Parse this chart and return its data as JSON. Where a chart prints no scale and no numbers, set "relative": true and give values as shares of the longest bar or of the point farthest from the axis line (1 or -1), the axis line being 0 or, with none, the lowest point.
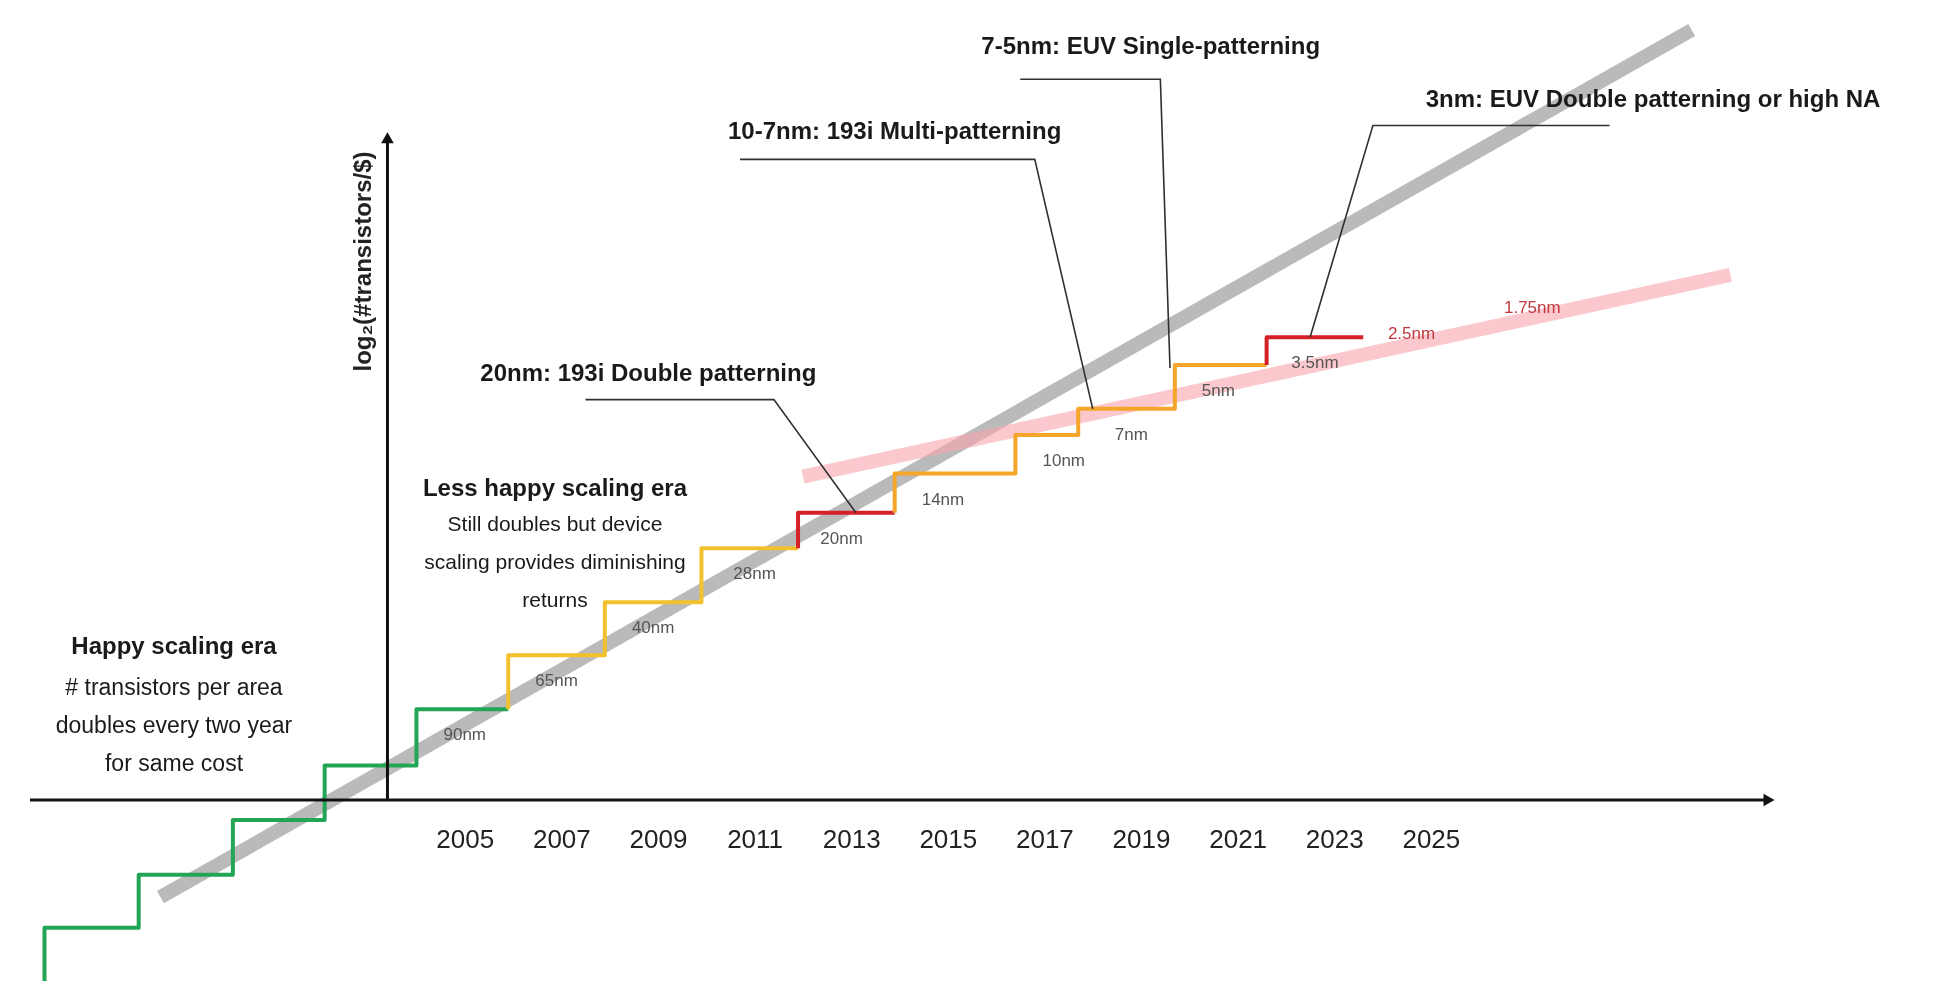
{
  "chart_data": {
    "type": "step",
    "relative": true,
    "ylabel": "log₂(#transistors/$)",
    "tick_labels": "x",
    "xlim": [
      1996,
      2032
    ],
    "xticks": [
      2005,
      2007,
      2009,
      2011,
      2013,
      2015,
      2017,
      2019,
      2021,
      2023,
      2025
    ],
    "series": [
      {
        "type": "line",
        "color": "#8c8c8c",
        "x": [
          1998.7,
          2030.4
        ],
        "values": [
          -0.126,
          1
        ]
      },
      {
        "type": "line",
        "color": "#f6a3ab",
        "x": [
          2012.0,
          2031.2
        ],
        "values": [
          0.42,
          0.682
        ]
      },
      {
        "color": "#22a555",
        "x": [
          1996.3,
          1996.3,
          1998.25,
          2000.2,
          2002.1,
          2004.0,
          2005.9
        ],
        "values": [
          -0.235,
          -0.166,
          -0.097,
          -0.026,
          0.045,
          0.118,
          0.118
        ]
      },
      {
        "color": "#f2c12e",
        "x": [
          2005.9,
          2005.9,
          2007.9,
          2009.9,
          2011.9
        ],
        "values": [
          0.118,
          0.188,
          0.257,
          0.327,
          0.327
        ]
      },
      {
        "color": "#d42027",
        "x": [
          2011.9,
          2011.9,
          2013.9
        ],
        "values": [
          0.327,
          0.373,
          0.373
        ]
      },
      {
        "color": "#f4a52a",
        "x": [
          2013.9,
          2013.9,
          2016.4,
          2017.7,
          2019.7,
          2021.6
        ],
        "values": [
          0.373,
          0.424,
          0.474,
          0.508,
          0.565,
          0.565
        ]
      },
      {
        "color": "#d42027",
        "x": [
          2021.6,
          2021.6,
          2023.6
        ],
        "values": [
          0.565,
          0.601,
          0.601
        ]
      }
    ],
    "annotations": [
      "Happy scaling era",
      "# transistors per area doubles every two year for same cost",
      "Less happy scaling era",
      "Still doubles but device scaling provides diminishing returns",
      {
        "text": "90nm",
        "x": 2005.0,
        "y": 0.118
      },
      {
        "text": "65nm",
        "x": 2006.9,
        "y": 0.188
      },
      {
        "text": "40nm",
        "x": 2008.9,
        "y": 0.257
      },
      {
        "text": "28nm",
        "x": 2011.0,
        "y": 0.327
      },
      {
        "text": "20nm",
        "x": 2012.8,
        "y": 0.373
      },
      {
        "text": "14nm",
        "x": 2014.9,
        "y": 0.424
      },
      {
        "text": "10nm",
        "x": 2017.4,
        "y": 0.474
      },
      {
        "text": "7nm",
        "x": 2018.8,
        "y": 0.508
      },
      {
        "text": "5nm",
        "x": 2020.6,
        "y": 0.565
      },
      {
        "text": "3.5nm",
        "x": 2022.6,
        "y": 0.601
      },
      {
        "text": "2.5nm",
        "x": 2024.6,
        "y": 0.592
      },
      {
        "text": "1.75nm",
        "x": 2027.1,
        "y": 0.626
      },
      {
        "text": "20nm: 193i Double patterning",
        "x": 2013.1,
        "y": 0.373
      },
      {
        "text": "10-7nm: 193i Multi-patterning",
        "x": 2018.0,
        "y": 0.508
      },
      {
        "text": "7-5nm: EUV Single-patterning",
        "x": 2019.6,
        "y": 0.561
      },
      {
        "text": "3nm:  EUV Double patterning or high NA",
        "x": 2022.5,
        "y": 0.601
      }
    ]
  }
}
